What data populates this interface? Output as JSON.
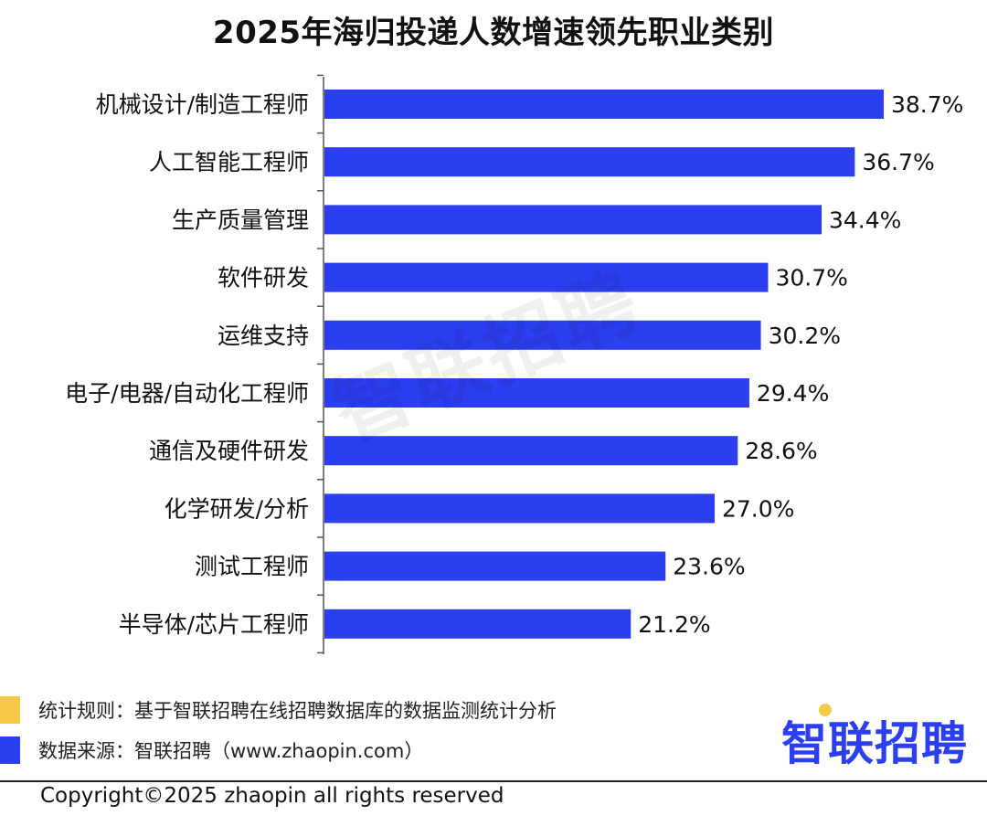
{
  "title": "2025年海归投递人数增速领先职业类别",
  "watermark": "智联招聘",
  "colors": {
    "bar": "#2b3ff0",
    "swatch_rule": "#f7c948",
    "swatch_source": "#2b3ff0",
    "logo": "#2b3ff0",
    "logo_dot": "#f7c948",
    "axis": "#555555"
  },
  "footnotes": {
    "rule_text": "统计规则：基于智联招聘在线招聘数据库的数据监测统计分析",
    "source_text": "数据来源：智联招聘（www.zhaopin.com）"
  },
  "logo_text": "智联招聘",
  "copyright": "Copyright©2025 zhaopin all rights reserved",
  "chart_data": {
    "type": "bar",
    "orientation": "horizontal",
    "title": "2025年海归投递人数增速领先职业类别",
    "categories": [
      "机械设计/制造工程师",
      "人工智能工程师",
      "生产质量管理",
      "软件研发",
      "运维支持",
      "电子/电器/自动化工程师",
      "通信及硬件研发",
      "化学研发/分析",
      "测试工程师",
      "半导体/芯片工程师"
    ],
    "values": [
      38.7,
      36.7,
      34.4,
      30.7,
      30.2,
      29.4,
      28.6,
      27.0,
      23.6,
      21.2
    ],
    "value_labels": [
      "38.7%",
      "36.7%",
      "34.4%",
      "30.7%",
      "30.2%",
      "29.4%",
      "28.6%",
      "27.0%",
      "23.6%",
      "21.2%"
    ],
    "unit": "%",
    "xlim": [
      0,
      38.7
    ],
    "grid": false,
    "legend": "none"
  }
}
